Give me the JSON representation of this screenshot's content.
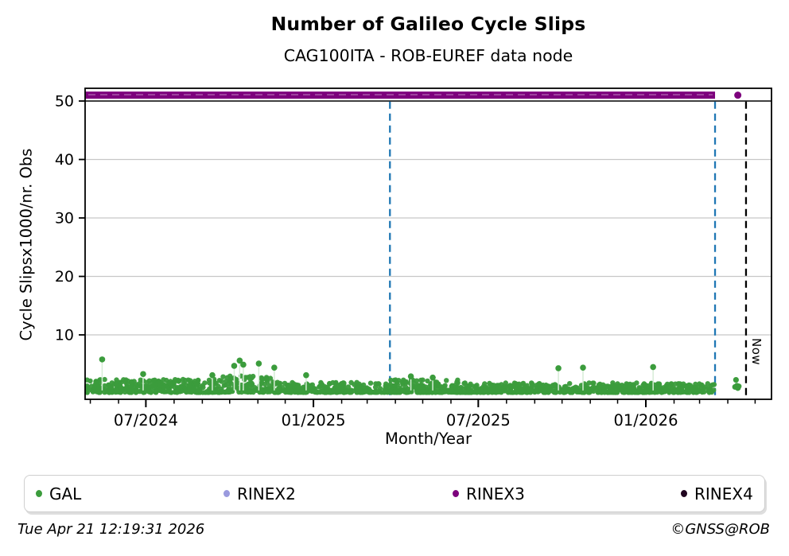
{
  "header": {
    "title": "Number of Galileo Cycle Slips",
    "subtitle": "CAG100ITA - ROB-EUREF data node"
  },
  "footer": {
    "timestamp": "Tue Apr 21 12:19:31 2026",
    "credit": "©GNSS@ROB"
  },
  "legend": [
    {
      "label": "GAL",
      "color": "#3b9c3c"
    },
    {
      "label": "RINEX2",
      "color": "#9a9ade"
    },
    {
      "label": "RINEX3",
      "color": "#7d017d"
    },
    {
      "label": "RINEX4",
      "color": "#20041f"
    }
  ],
  "chart_data": {
    "type": "scatter",
    "title": "Number of Galileo Cycle Slips",
    "subtitle": "CAG100ITA - ROB-EUREF data node",
    "xlabel": "Month/Year",
    "ylabel": "Cycle Slipsx1000/nr. Obs",
    "ylim": [
      -1,
      52.3
    ],
    "yticks": [
      10,
      20,
      30,
      40,
      50
    ],
    "grid": "horizontal-light-gray",
    "threshold_hline": {
      "y": 50,
      "color": "#000000"
    },
    "x_start": "2024-04-26",
    "x_end": "2026-05-19",
    "xticks_major": [
      {
        "date": "2024-07-01",
        "label": "07/2024"
      },
      {
        "date": "2025-01-01",
        "label": "01/2025"
      },
      {
        "date": "2025-07-01",
        "label": "07/2025"
      },
      {
        "date": "2026-01-01",
        "label": "01/2026"
      }
    ],
    "xticks_minor": "monthly",
    "vlines": [
      {
        "date": "2025-03-26",
        "color": "#1f77b4",
        "style": "dashed",
        "label": ""
      },
      {
        "date": "2026-03-18",
        "color": "#1f77b4",
        "style": "dashed",
        "label": ""
      },
      {
        "date": "2026-04-21",
        "color": "#000000",
        "style": "dashed",
        "label": "Now"
      }
    ],
    "series": [
      {
        "name": "GAL",
        "color": "#3b9c3c",
        "stem_color": "#d6ecd6",
        "marker_radius": 3.2,
        "points_per_day": 2.2,
        "seed": 7,
        "band_segments": [
          {
            "from": "2024-04-26",
            "to": "2024-09-22",
            "vmin": 0.15,
            "vmax": 2.4
          },
          {
            "from": "2024-09-22",
            "to": "2024-11-18",
            "vmin": 0.2,
            "vmax": 3.0
          },
          {
            "from": "2024-11-18",
            "to": "2025-03-26",
            "vmin": 0.15,
            "vmax": 1.9
          },
          {
            "from": "2025-03-26",
            "to": "2025-06-20",
            "vmin": 0.15,
            "vmax": 2.3
          },
          {
            "from": "2025-06-20",
            "to": "2026-03-18",
            "vmin": 0.15,
            "vmax": 1.8
          }
        ],
        "spikes": [
          [
            "2024-05-14",
            5.8
          ],
          [
            "2024-06-28",
            3.3
          ],
          [
            "2024-09-12",
            3.1
          ],
          [
            "2024-10-06",
            4.7
          ],
          [
            "2024-10-12",
            5.6
          ],
          [
            "2024-10-16",
            4.9
          ],
          [
            "2024-11-02",
            5.1
          ],
          [
            "2024-11-19",
            4.4
          ],
          [
            "2024-12-24",
            3.1
          ],
          [
            "2025-04-18",
            2.9
          ],
          [
            "2025-05-12",
            2.7
          ],
          [
            "2025-09-27",
            4.3
          ],
          [
            "2025-10-24",
            4.4
          ],
          [
            "2026-01-09",
            4.5
          ]
        ],
        "post_gap_points": [
          [
            "2026-04-09",
            1.1
          ],
          [
            "2026-04-10",
            2.3
          ],
          [
            "2026-04-11",
            1.3
          ],
          [
            "2026-04-12",
            0.9
          ],
          [
            "2026-04-13",
            1.2
          ]
        ]
      },
      {
        "name": "RINEX2",
        "color": "#9a9ade",
        "points": []
      },
      {
        "name": "RINEX3",
        "color": "#7d017d",
        "constant_line": {
          "y": 51,
          "from": "2024-04-26",
          "to": "2026-03-18",
          "thickness": 9
        },
        "isolated_points": [
          [
            "2026-04-12",
            51
          ]
        ]
      },
      {
        "name": "RINEX4",
        "color": "#20041f",
        "points": []
      }
    ]
  }
}
